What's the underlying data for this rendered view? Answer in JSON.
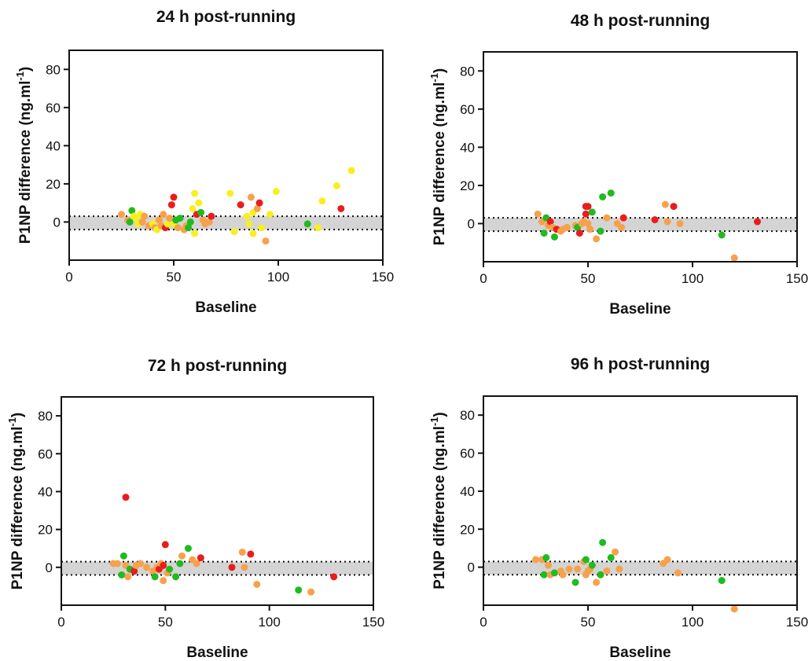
{
  "figure": {
    "ylabel_main": "P1NP difference (ng.ml",
    "ylabel_sup": "-1",
    "ylabel_end": ")",
    "xlabel": "Baseline"
  },
  "colors": {
    "red": "#ea1c1c",
    "orange": "#f7a14b",
    "yellow": "#f8ef21",
    "green": "#1fbb1f",
    "band": "#d4d4d4"
  },
  "chart_data": [
    {
      "type": "scatter",
      "title": "24 h post-running",
      "xlabel": "Baseline",
      "ylabel": "P1NP difference (ng.ml-1)",
      "xlim": [
        0,
        150
      ],
      "ylim": [
        -20,
        90
      ],
      "xticks": [
        "0",
        "50",
        "100",
        "150"
      ],
      "yticks": [
        "80",
        "60",
        "40",
        "20",
        "0"
      ],
      "band": [
        -4,
        3
      ],
      "grid": false,
      "points": [
        {
          "x": 25,
          "y": 4,
          "c": "orange"
        },
        {
          "x": 28,
          "y": 1,
          "c": "orange"
        },
        {
          "x": 29,
          "y": 0,
          "c": "green"
        },
        {
          "x": 30,
          "y": 6,
          "c": "green"
        },
        {
          "x": 31,
          "y": 3,
          "c": "yellow"
        },
        {
          "x": 32,
          "y": 2,
          "c": "yellow"
        },
        {
          "x": 33,
          "y": -1,
          "c": "yellow"
        },
        {
          "x": 34,
          "y": 4,
          "c": "yellow"
        },
        {
          "x": 35,
          "y": 0,
          "c": "orange"
        },
        {
          "x": 36,
          "y": 3,
          "c": "orange"
        },
        {
          "x": 38,
          "y": -2,
          "c": "orange"
        },
        {
          "x": 40,
          "y": -1,
          "c": "yellow"
        },
        {
          "x": 41,
          "y": -3,
          "c": "orange"
        },
        {
          "x": 42,
          "y": -4,
          "c": "yellow"
        },
        {
          "x": 43,
          "y": 1,
          "c": "orange"
        },
        {
          "x": 44,
          "y": -2,
          "c": "orange"
        },
        {
          "x": 45,
          "y": 4,
          "c": "orange"
        },
        {
          "x": 46,
          "y": -3,
          "c": "red"
        },
        {
          "x": 47,
          "y": -1,
          "c": "yellow"
        },
        {
          "x": 48,
          "y": 2,
          "c": "orange"
        },
        {
          "x": 49,
          "y": 9,
          "c": "red"
        },
        {
          "x": 50,
          "y": 13,
          "c": "red"
        },
        {
          "x": 50,
          "y": -1,
          "c": "yellow"
        },
        {
          "x": 51,
          "y": 1,
          "c": "green"
        },
        {
          "x": 52,
          "y": -3,
          "c": "orange"
        },
        {
          "x": 53,
          "y": 2,
          "c": "green"
        },
        {
          "x": 55,
          "y": -4,
          "c": "orange"
        },
        {
          "x": 56,
          "y": -2,
          "c": "orange"
        },
        {
          "x": 57,
          "y": -3,
          "c": "green"
        },
        {
          "x": 58,
          "y": 0,
          "c": "green"
        },
        {
          "x": 59,
          "y": 7,
          "c": "yellow"
        },
        {
          "x": 60,
          "y": 15,
          "c": "yellow"
        },
        {
          "x": 60,
          "y": -6,
          "c": "yellow"
        },
        {
          "x": 61,
          "y": 4,
          "c": "red"
        },
        {
          "x": 62,
          "y": 10,
          "c": "yellow"
        },
        {
          "x": 63,
          "y": 5,
          "c": "green"
        },
        {
          "x": 64,
          "y": 1,
          "c": "orange"
        },
        {
          "x": 65,
          "y": -1,
          "c": "orange"
        },
        {
          "x": 67,
          "y": 0,
          "c": "orange"
        },
        {
          "x": 68,
          "y": 3,
          "c": "red"
        },
        {
          "x": 77,
          "y": 15,
          "c": "yellow"
        },
        {
          "x": 79,
          "y": -5,
          "c": "yellow"
        },
        {
          "x": 82,
          "y": 9,
          "c": "red"
        },
        {
          "x": 85,
          "y": 3,
          "c": "yellow"
        },
        {
          "x": 86,
          "y": -1,
          "c": "yellow"
        },
        {
          "x": 87,
          "y": 13,
          "c": "orange"
        },
        {
          "x": 88,
          "y": 5,
          "c": "yellow"
        },
        {
          "x": 88,
          "y": -6,
          "c": "yellow"
        },
        {
          "x": 90,
          "y": 7,
          "c": "orange"
        },
        {
          "x": 91,
          "y": 10,
          "c": "red"
        },
        {
          "x": 92,
          "y": -3,
          "c": "yellow"
        },
        {
          "x": 94,
          "y": -10,
          "c": "orange"
        },
        {
          "x": 96,
          "y": 4,
          "c": "yellow"
        },
        {
          "x": 99,
          "y": 16,
          "c": "yellow"
        },
        {
          "x": 114,
          "y": -1,
          "c": "green"
        },
        {
          "x": 119,
          "y": -3,
          "c": "yellow"
        },
        {
          "x": 121,
          "y": 11,
          "c": "yellow"
        },
        {
          "x": 128,
          "y": 19,
          "c": "yellow"
        },
        {
          "x": 130,
          "y": 7,
          "c": "red"
        },
        {
          "x": 135,
          "y": 27,
          "c": "yellow"
        }
      ]
    },
    {
      "type": "scatter",
      "title": "48 h post-running",
      "xlabel": "Baseline",
      "ylabel": "P1NP difference (ng.ml-1)",
      "xlim": [
        0,
        150
      ],
      "ylim": [
        -20,
        90
      ],
      "xticks": [
        "0",
        "50",
        "100",
        "150"
      ],
      "yticks": [
        "80",
        "60",
        "40",
        "20",
        "0"
      ],
      "band": [
        -4,
        3
      ],
      "grid": false,
      "points": [
        {
          "x": 26,
          "y": 5,
          "c": "orange"
        },
        {
          "x": 28,
          "y": 1,
          "c": "orange"
        },
        {
          "x": 29,
          "y": -5,
          "c": "green"
        },
        {
          "x": 30,
          "y": 3,
          "c": "green"
        },
        {
          "x": 31,
          "y": -1,
          "c": "orange"
        },
        {
          "x": 32,
          "y": 1,
          "c": "red"
        },
        {
          "x": 33,
          "y": -2,
          "c": "orange"
        },
        {
          "x": 34,
          "y": -7,
          "c": "green"
        },
        {
          "x": 35,
          "y": -3,
          "c": "red"
        },
        {
          "x": 37,
          "y": -4,
          "c": "orange"
        },
        {
          "x": 38,
          "y": -3,
          "c": "orange"
        },
        {
          "x": 40,
          "y": -2,
          "c": "orange"
        },
        {
          "x": 44,
          "y": -1,
          "c": "orange"
        },
        {
          "x": 45,
          "y": -2,
          "c": "green"
        },
        {
          "x": 46,
          "y": -5,
          "c": "red"
        },
        {
          "x": 47,
          "y": 0,
          "c": "orange"
        },
        {
          "x": 48,
          "y": 1,
          "c": "orange"
        },
        {
          "x": 49,
          "y": 5,
          "c": "red"
        },
        {
          "x": 49,
          "y": 9,
          "c": "red"
        },
        {
          "x": 50,
          "y": 0,
          "c": "orange"
        },
        {
          "x": 50,
          "y": 9,
          "c": "red"
        },
        {
          "x": 51,
          "y": -3,
          "c": "orange"
        },
        {
          "x": 52,
          "y": 6,
          "c": "green"
        },
        {
          "x": 54,
          "y": -8,
          "c": "orange"
        },
        {
          "x": 56,
          "y": -4,
          "c": "green"
        },
        {
          "x": 57,
          "y": 14,
          "c": "green"
        },
        {
          "x": 59,
          "y": 3,
          "c": "orange"
        },
        {
          "x": 61,
          "y": 16,
          "c": "green"
        },
        {
          "x": 64,
          "y": 0,
          "c": "orange"
        },
        {
          "x": 66,
          "y": -2,
          "c": "orange"
        },
        {
          "x": 67,
          "y": 3,
          "c": "red"
        },
        {
          "x": 82,
          "y": 2,
          "c": "red"
        },
        {
          "x": 87,
          "y": 10,
          "c": "orange"
        },
        {
          "x": 88,
          "y": 1,
          "c": "orange"
        },
        {
          "x": 91,
          "y": 9,
          "c": "red"
        },
        {
          "x": 94,
          "y": 0,
          "c": "orange"
        },
        {
          "x": 114,
          "y": -6,
          "c": "green"
        },
        {
          "x": 120,
          "y": -18,
          "c": "orange"
        },
        {
          "x": 131,
          "y": 1,
          "c": "red"
        }
      ]
    },
    {
      "type": "scatter",
      "title": "72 h post-running",
      "xlabel": "Baseline",
      "ylabel": "P1NP difference (ng.ml-1)",
      "xlim": [
        0,
        150
      ],
      "ylim": [
        -20,
        90
      ],
      "xticks": [
        "0",
        "50",
        "100",
        "150"
      ],
      "yticks": [
        "80",
        "60",
        "40",
        "20",
        "0"
      ],
      "band": [
        -4,
        3
      ],
      "grid": false,
      "points": [
        {
          "x": 25,
          "y": 2,
          "c": "orange"
        },
        {
          "x": 27,
          "y": 2,
          "c": "orange"
        },
        {
          "x": 29,
          "y": -4,
          "c": "green"
        },
        {
          "x": 30,
          "y": 6,
          "c": "green"
        },
        {
          "x": 31,
          "y": 37,
          "c": "red"
        },
        {
          "x": 31,
          "y": 1,
          "c": "orange"
        },
        {
          "x": 32,
          "y": -5,
          "c": "orange"
        },
        {
          "x": 33,
          "y": -1,
          "c": "green"
        },
        {
          "x": 35,
          "y": -2,
          "c": "red"
        },
        {
          "x": 36,
          "y": 1,
          "c": "orange"
        },
        {
          "x": 38,
          "y": 2,
          "c": "orange"
        },
        {
          "x": 41,
          "y": 0,
          "c": "orange"
        },
        {
          "x": 44,
          "y": -2,
          "c": "orange"
        },
        {
          "x": 45,
          "y": -5,
          "c": "green"
        },
        {
          "x": 46,
          "y": 0,
          "c": "orange"
        },
        {
          "x": 47,
          "y": -1,
          "c": "red"
        },
        {
          "x": 48,
          "y": 2,
          "c": "orange"
        },
        {
          "x": 49,
          "y": 1,
          "c": "red"
        },
        {
          "x": 49,
          "y": -7,
          "c": "orange"
        },
        {
          "x": 50,
          "y": 12,
          "c": "red"
        },
        {
          "x": 51,
          "y": -3,
          "c": "orange"
        },
        {
          "x": 52,
          "y": -1,
          "c": "green"
        },
        {
          "x": 55,
          "y": -5,
          "c": "green"
        },
        {
          "x": 57,
          "y": 2,
          "c": "green"
        },
        {
          "x": 58,
          "y": 6,
          "c": "orange"
        },
        {
          "x": 61,
          "y": 10,
          "c": "green"
        },
        {
          "x": 63,
          "y": 4,
          "c": "orange"
        },
        {
          "x": 65,
          "y": 2,
          "c": "orange"
        },
        {
          "x": 67,
          "y": 5,
          "c": "red"
        },
        {
          "x": 82,
          "y": 0,
          "c": "red"
        },
        {
          "x": 87,
          "y": 8,
          "c": "orange"
        },
        {
          "x": 88,
          "y": 0,
          "c": "orange"
        },
        {
          "x": 91,
          "y": 7,
          "c": "red"
        },
        {
          "x": 94,
          "y": -9,
          "c": "orange"
        },
        {
          "x": 114,
          "y": -12,
          "c": "green"
        },
        {
          "x": 120,
          "y": -13,
          "c": "orange"
        },
        {
          "x": 131,
          "y": -5,
          "c": "red"
        }
      ]
    },
    {
      "type": "scatter",
      "title": "96 h post-running",
      "xlabel": "Baseline",
      "ylabel": "P1NP difference (ng.ml-1)",
      "xlim": [
        0,
        150
      ],
      "ylim": [
        -20,
        90
      ],
      "xticks": [
        "0",
        "50",
        "100",
        "150"
      ],
      "yticks": [
        "80",
        "60",
        "40",
        "20",
        "0"
      ],
      "band": [
        -4,
        3
      ],
      "grid": false,
      "points": [
        {
          "x": 25,
          "y": 4,
          "c": "orange"
        },
        {
          "x": 28,
          "y": 4,
          "c": "orange"
        },
        {
          "x": 29,
          "y": -4,
          "c": "green"
        },
        {
          "x": 30,
          "y": 5,
          "c": "green"
        },
        {
          "x": 31,
          "y": 1,
          "c": "orange"
        },
        {
          "x": 32,
          "y": -4,
          "c": "orange"
        },
        {
          "x": 34,
          "y": -3,
          "c": "green"
        },
        {
          "x": 37,
          "y": -2,
          "c": "orange"
        },
        {
          "x": 38,
          "y": -4,
          "c": "orange"
        },
        {
          "x": 41,
          "y": -1,
          "c": "orange"
        },
        {
          "x": 44,
          "y": -8,
          "c": "green"
        },
        {
          "x": 45,
          "y": -1,
          "c": "orange"
        },
        {
          "x": 48,
          "y": 3,
          "c": "orange"
        },
        {
          "x": 49,
          "y": 4,
          "c": "green"
        },
        {
          "x": 49,
          "y": -4,
          "c": "orange"
        },
        {
          "x": 50,
          "y": -2,
          "c": "orange"
        },
        {
          "x": 51,
          "y": -1,
          "c": "orange"
        },
        {
          "x": 52,
          "y": 1,
          "c": "green"
        },
        {
          "x": 54,
          "y": -8,
          "c": "orange"
        },
        {
          "x": 56,
          "y": -4,
          "c": "green"
        },
        {
          "x": 57,
          "y": 13,
          "c": "green"
        },
        {
          "x": 59,
          "y": -2,
          "c": "orange"
        },
        {
          "x": 61,
          "y": 5,
          "c": "green"
        },
        {
          "x": 63,
          "y": 8,
          "c": "orange"
        },
        {
          "x": 65,
          "y": -1,
          "c": "orange"
        },
        {
          "x": 86,
          "y": 2,
          "c": "orange"
        },
        {
          "x": 88,
          "y": 4,
          "c": "orange"
        },
        {
          "x": 93,
          "y": -3,
          "c": "orange"
        },
        {
          "x": 114,
          "y": -7,
          "c": "green"
        },
        {
          "x": 120,
          "y": -22,
          "c": "orange"
        }
      ]
    }
  ]
}
